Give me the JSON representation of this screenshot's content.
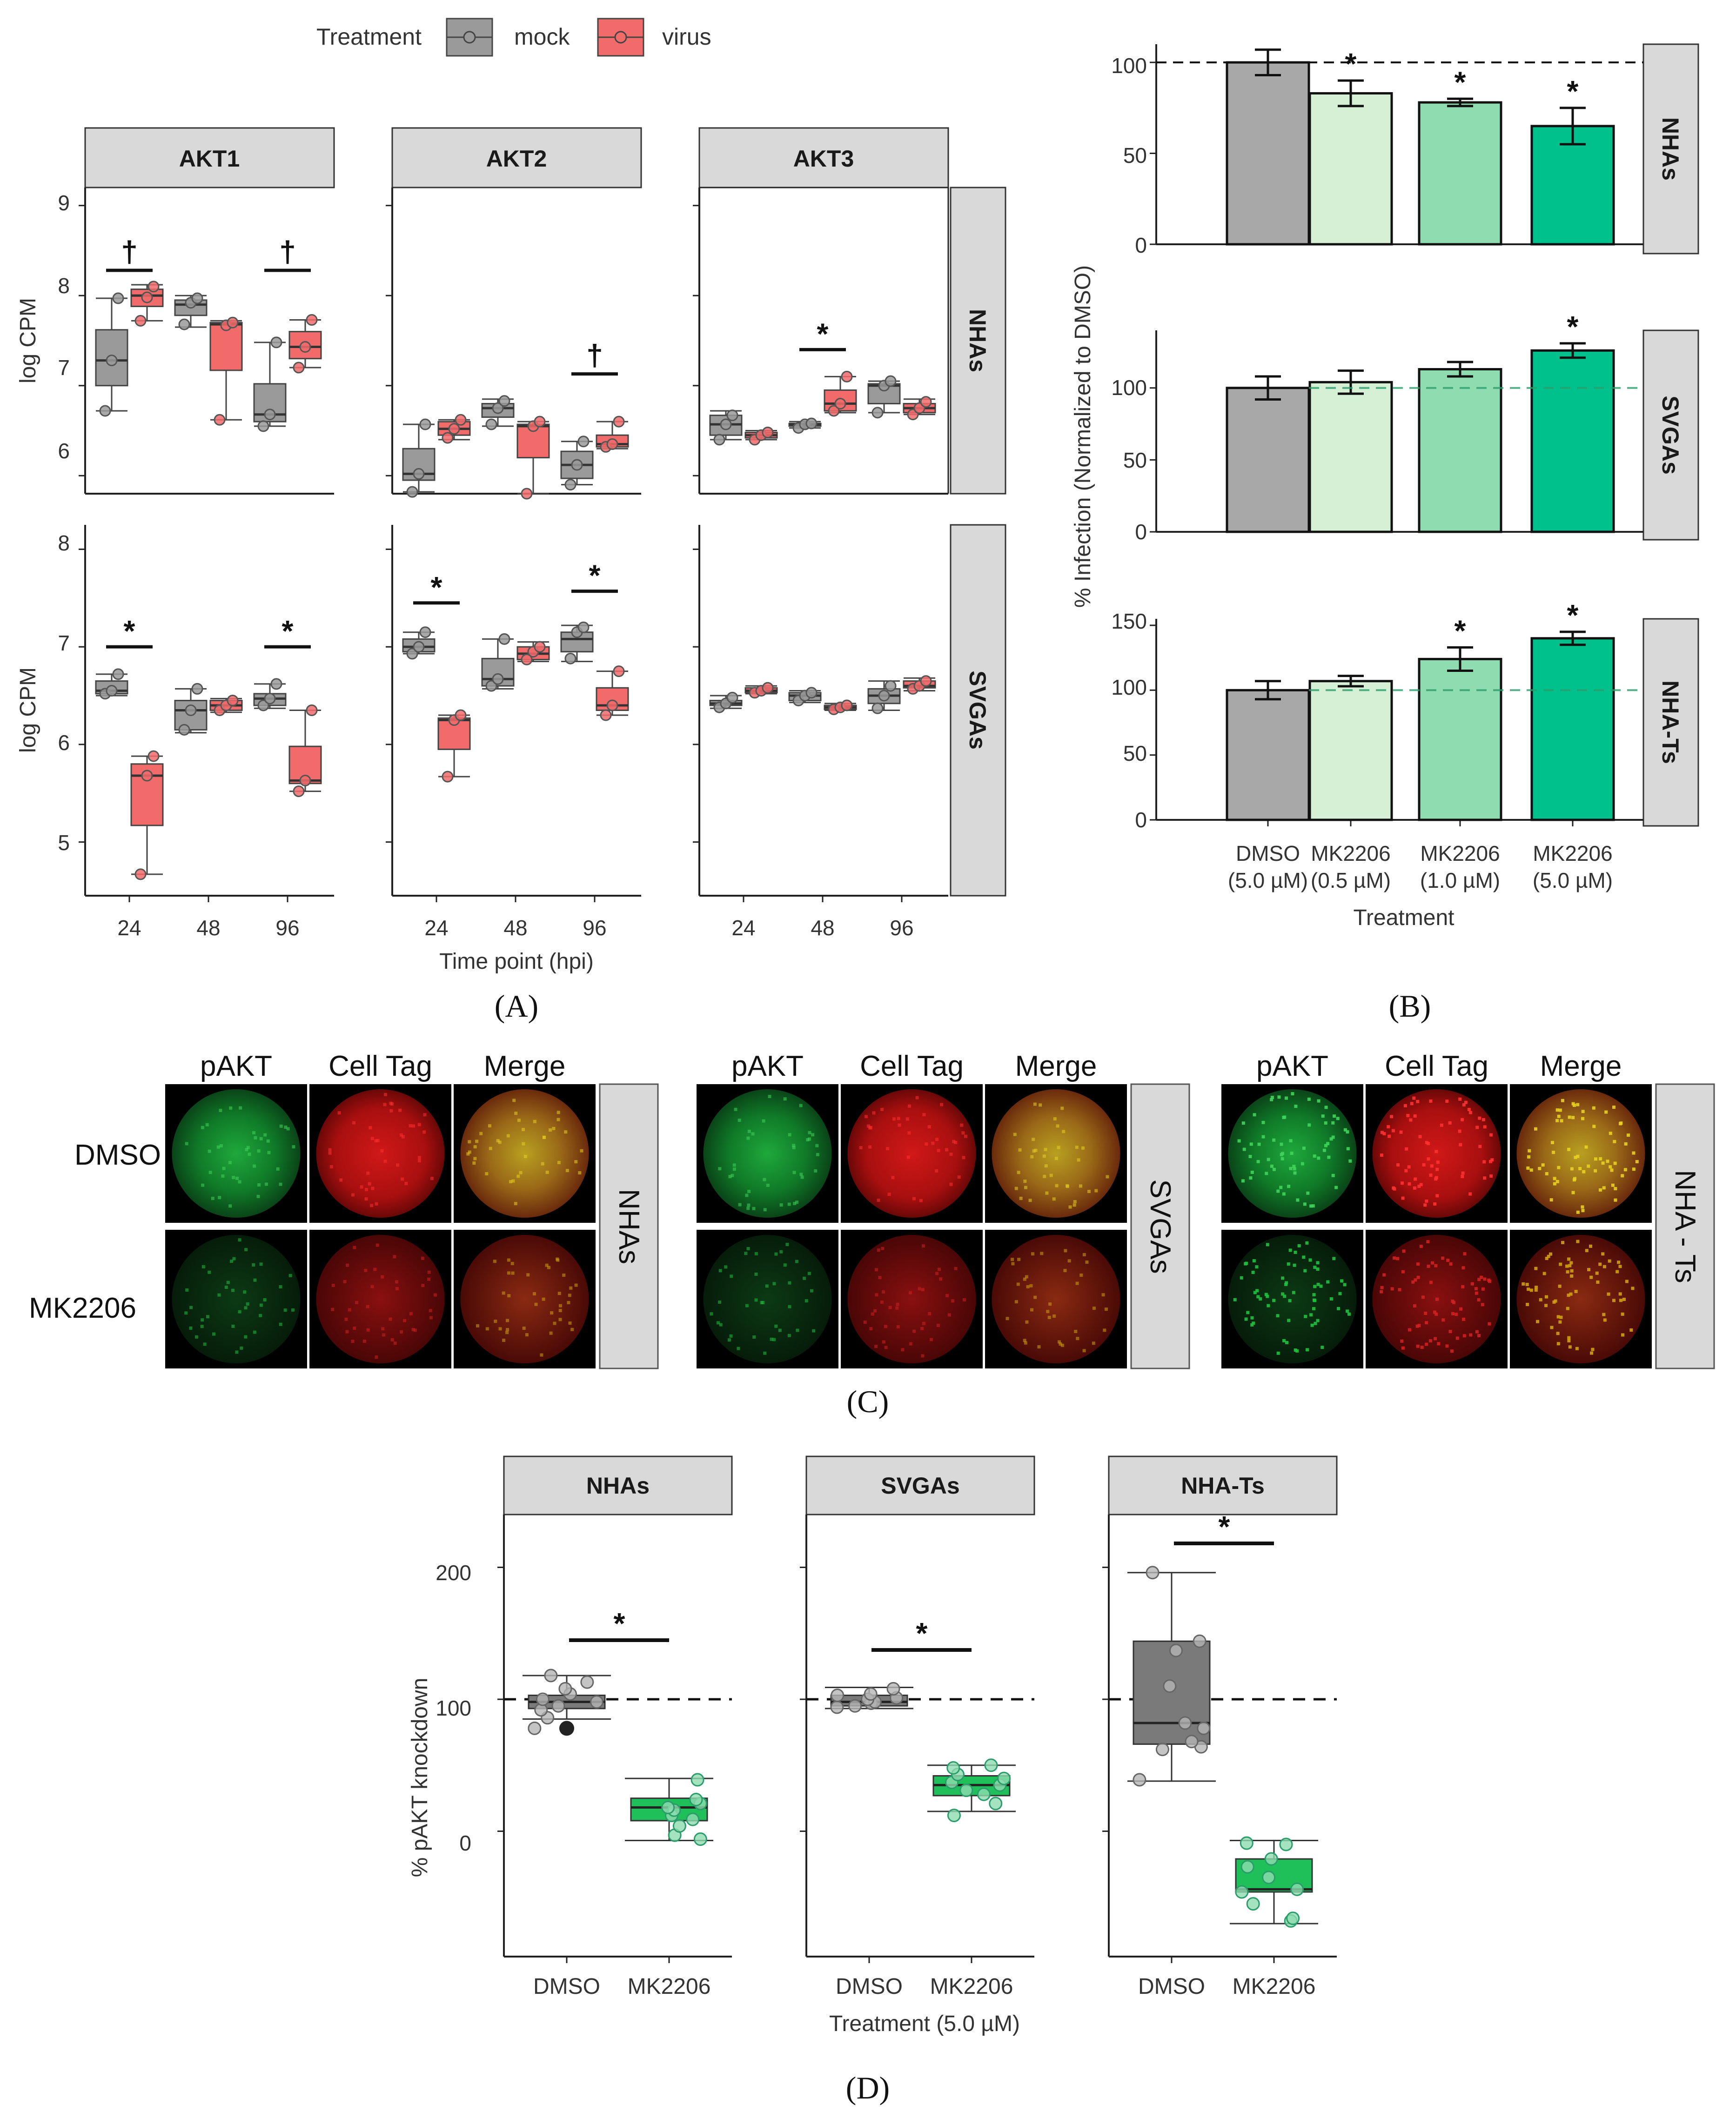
{
  "colors": {
    "mock": "#9a9a9a",
    "virus": "#f26b6b",
    "dmso": "#a8a8a8",
    "mk05": "#d6f0d6",
    "mk10": "#8fdcb0",
    "mk50": "#00c08b",
    "d_mk": "#1fbf5a",
    "strip": "#d9d9d9"
  },
  "chart_data": [
    {
      "type": "boxplot",
      "panel_label": "(A)",
      "legend": {
        "title": "Treatment",
        "entries": [
          "mock",
          "virus"
        ]
      },
      "columns": [
        "AKT1",
        "AKT2",
        "AKT3"
      ],
      "rows": [
        "NHAs",
        "SVGAs"
      ],
      "x_ticks": [
        "24",
        "48",
        "96"
      ],
      "xlabel": "Time point (hpi)",
      "ylabel": "log CPM",
      "row_yticks": {
        "NHAs": [
          "9",
          "8",
          "7",
          "6"
        ],
        "SVGAs": [
          "8",
          "7",
          "6",
          "5"
        ]
      },
      "row_ylim": {
        "NHAs": [
          5.8,
          9.2
        ],
        "SVGAs": [
          4.45,
          8.25
        ]
      },
      "groups": [
        {
          "col": 0,
          "row": 0,
          "tp": 0,
          "trt": "mock",
          "box": [
            6.72,
            7.0,
            7.28,
            7.62,
            7.97
          ],
          "pts": [
            6.72,
            7.28,
            7.97
          ]
        },
        {
          "col": 0,
          "row": 0,
          "tp": 0,
          "trt": "virus",
          "box": [
            7.72,
            7.88,
            8.0,
            8.07,
            8.12
          ],
          "pts": [
            7.72,
            7.98,
            8.1
          ]
        },
        {
          "col": 0,
          "row": 0,
          "tp": 1,
          "trt": "mock",
          "box": [
            7.65,
            7.78,
            7.9,
            7.95,
            8.0
          ],
          "pts": [
            7.68,
            7.92,
            7.97
          ]
        },
        {
          "col": 0,
          "row": 0,
          "tp": 1,
          "trt": "virus",
          "box": [
            6.62,
            7.17,
            7.68,
            7.7,
            7.72
          ],
          "pts": [
            6.62,
            7.67,
            7.7
          ]
        },
        {
          "col": 0,
          "row": 0,
          "tp": 2,
          "trt": "mock",
          "box": [
            6.55,
            6.6,
            6.68,
            7.02,
            7.48
          ],
          "pts": [
            6.55,
            6.68,
            7.48
          ]
        },
        {
          "col": 0,
          "row": 0,
          "tp": 2,
          "trt": "virus",
          "box": [
            7.2,
            7.3,
            7.43,
            7.6,
            7.73
          ],
          "pts": [
            7.2,
            7.43,
            7.73
          ]
        },
        {
          "col": 1,
          "row": 0,
          "tp": 0,
          "trt": "mock",
          "box": [
            5.82,
            5.95,
            6.02,
            6.3,
            6.57
          ],
          "pts": [
            5.82,
            6.02,
            6.57
          ]
        },
        {
          "col": 1,
          "row": 0,
          "tp": 0,
          "trt": "virus",
          "box": [
            6.4,
            6.45,
            6.52,
            6.6,
            6.62
          ],
          "pts": [
            6.42,
            6.52,
            6.62
          ]
        },
        {
          "col": 1,
          "row": 0,
          "tp": 1,
          "trt": "mock",
          "box": [
            6.55,
            6.65,
            6.75,
            6.8,
            6.85
          ],
          "pts": [
            6.57,
            6.75,
            6.83
          ]
        },
        {
          "col": 1,
          "row": 0,
          "tp": 1,
          "trt": "virus",
          "box": [
            5.8,
            6.2,
            6.55,
            6.57,
            6.6
          ],
          "pts": [
            5.8,
            6.55,
            6.6
          ]
        },
        {
          "col": 1,
          "row": 0,
          "tp": 2,
          "trt": "mock",
          "box": [
            5.9,
            5.97,
            6.12,
            6.27,
            6.38
          ],
          "pts": [
            5.9,
            6.12,
            6.38
          ]
        },
        {
          "col": 1,
          "row": 0,
          "tp": 2,
          "trt": "virus",
          "box": [
            6.3,
            6.32,
            6.35,
            6.45,
            6.6
          ],
          "pts": [
            6.32,
            6.35,
            6.6
          ]
        },
        {
          "col": 2,
          "row": 0,
          "tp": 0,
          "trt": "mock",
          "box": [
            6.4,
            6.45,
            6.57,
            6.67,
            6.72
          ],
          "pts": [
            6.4,
            6.57,
            6.67
          ]
        },
        {
          "col": 2,
          "row": 0,
          "tp": 0,
          "trt": "virus",
          "box": [
            6.4,
            6.42,
            6.45,
            6.48,
            6.5
          ],
          "pts": [
            6.4,
            6.45,
            6.48
          ]
        },
        {
          "col": 2,
          "row": 0,
          "tp": 1,
          "trt": "mock",
          "box": [
            6.53,
            6.55,
            6.57,
            6.58,
            6.6
          ],
          "pts": [
            6.53,
            6.57,
            6.58
          ]
        },
        {
          "col": 2,
          "row": 0,
          "tp": 1,
          "trt": "virus",
          "box": [
            6.7,
            6.72,
            6.8,
            6.95,
            7.1
          ],
          "pts": [
            6.72,
            6.8,
            7.1
          ]
        },
        {
          "col": 2,
          "row": 0,
          "tp": 2,
          "trt": "mock",
          "box": [
            6.7,
            6.8,
            7.0,
            7.02,
            7.05
          ],
          "pts": [
            6.7,
            7.0,
            7.05
          ]
        },
        {
          "col": 2,
          "row": 0,
          "tp": 2,
          "trt": "virus",
          "box": [
            6.68,
            6.7,
            6.75,
            6.8,
            6.85
          ],
          "pts": [
            6.68,
            6.75,
            6.82
          ]
        },
        {
          "col": 0,
          "row": 1,
          "tp": 0,
          "trt": "mock",
          "box": [
            6.5,
            6.52,
            6.55,
            6.65,
            6.72
          ],
          "pts": [
            6.52,
            6.55,
            6.72
          ]
        },
        {
          "col": 0,
          "row": 1,
          "tp": 0,
          "trt": "virus",
          "box": [
            4.67,
            5.17,
            5.68,
            5.8,
            5.88
          ],
          "pts": [
            4.67,
            5.68,
            5.88
          ]
        },
        {
          "col": 0,
          "row": 1,
          "tp": 1,
          "trt": "mock",
          "box": [
            6.12,
            6.15,
            6.35,
            6.45,
            6.57
          ],
          "pts": [
            6.15,
            6.35,
            6.57
          ]
        },
        {
          "col": 0,
          "row": 1,
          "tp": 1,
          "trt": "virus",
          "box": [
            6.33,
            6.35,
            6.4,
            6.45,
            6.47
          ],
          "pts": [
            6.35,
            6.4,
            6.45
          ]
        },
        {
          "col": 0,
          "row": 1,
          "tp": 2,
          "trt": "mock",
          "box": [
            6.37,
            6.4,
            6.47,
            6.52,
            6.62
          ],
          "pts": [
            6.4,
            6.47,
            6.62
          ]
        },
        {
          "col": 0,
          "row": 1,
          "tp": 2,
          "trt": "virus",
          "box": [
            5.52,
            5.6,
            5.63,
            5.98,
            6.35
          ],
          "pts": [
            5.52,
            5.63,
            6.35
          ]
        },
        {
          "col": 1,
          "row": 1,
          "tp": 0,
          "trt": "mock",
          "box": [
            6.93,
            6.95,
            7.0,
            7.08,
            7.15
          ],
          "pts": [
            6.93,
            7.0,
            7.15
          ]
        },
        {
          "col": 1,
          "row": 1,
          "tp": 0,
          "trt": "virus",
          "box": [
            5.67,
            5.95,
            6.25,
            6.27,
            6.3
          ],
          "pts": [
            5.67,
            6.25,
            6.3
          ]
        },
        {
          "col": 1,
          "row": 1,
          "tp": 1,
          "trt": "mock",
          "box": [
            6.57,
            6.6,
            6.67,
            6.88,
            7.08
          ],
          "pts": [
            6.6,
            6.67,
            7.08
          ]
        },
        {
          "col": 1,
          "row": 1,
          "tp": 1,
          "trt": "virus",
          "box": [
            6.85,
            6.87,
            6.93,
            7.0,
            7.05
          ],
          "pts": [
            6.87,
            6.95,
            7.0
          ]
        },
        {
          "col": 1,
          "row": 1,
          "tp": 2,
          "trt": "mock",
          "box": [
            6.85,
            6.95,
            7.08,
            7.15,
            7.22
          ],
          "pts": [
            6.88,
            7.15,
            7.2
          ]
        },
        {
          "col": 1,
          "row": 1,
          "tp": 2,
          "trt": "virus",
          "box": [
            6.3,
            6.35,
            6.4,
            6.58,
            6.75
          ],
          "pts": [
            6.3,
            6.4,
            6.75
          ]
        },
        {
          "col": 2,
          "row": 1,
          "tp": 0,
          "trt": "mock",
          "box": [
            6.37,
            6.4,
            6.42,
            6.45,
            6.5
          ],
          "pts": [
            6.38,
            6.42,
            6.48
          ]
        },
        {
          "col": 2,
          "row": 1,
          "tp": 0,
          "trt": "virus",
          "box": [
            6.52,
            6.53,
            6.55,
            6.58,
            6.6
          ],
          "pts": [
            6.53,
            6.55,
            6.58
          ]
        },
        {
          "col": 2,
          "row": 1,
          "tp": 1,
          "trt": "mock",
          "box": [
            6.43,
            6.45,
            6.5,
            6.53,
            6.55
          ],
          "pts": [
            6.45,
            6.5,
            6.53
          ]
        },
        {
          "col": 2,
          "row": 1,
          "tp": 1,
          "trt": "virus",
          "box": [
            6.35,
            6.36,
            6.38,
            6.4,
            6.42
          ],
          "pts": [
            6.36,
            6.38,
            6.4
          ]
        },
        {
          "col": 2,
          "row": 1,
          "tp": 2,
          "trt": "mock",
          "box": [
            6.35,
            6.42,
            6.5,
            6.57,
            6.65
          ],
          "pts": [
            6.37,
            6.5,
            6.6
          ]
        },
        {
          "col": 2,
          "row": 1,
          "tp": 2,
          "trt": "virus",
          "box": [
            6.55,
            6.58,
            6.6,
            6.65,
            6.68
          ],
          "pts": [
            6.57,
            6.6,
            6.65
          ]
        }
      ],
      "annotations": [
        {
          "col": 0,
          "row": 0,
          "tp": 0,
          "symbol": "†",
          "y": 8.28
        },
        {
          "col": 0,
          "row": 0,
          "tp": 2,
          "symbol": "†",
          "y": 8.28
        },
        {
          "col": 1,
          "row": 0,
          "tp": 2,
          "symbol": "†",
          "y": 7.13
        },
        {
          "col": 2,
          "row": 0,
          "tp": 1,
          "symbol": "*",
          "y": 7.4
        },
        {
          "col": 0,
          "row": 1,
          "tp": 0,
          "symbol": "*",
          "y": 7.0
        },
        {
          "col": 0,
          "row": 1,
          "tp": 2,
          "symbol": "*",
          "y": 7.0
        },
        {
          "col": 1,
          "row": 1,
          "tp": 0,
          "symbol": "*",
          "y": 7.45
        },
        {
          "col": 1,
          "row": 1,
          "tp": 2,
          "symbol": "*",
          "y": 7.57
        }
      ]
    },
    {
      "type": "bar",
      "panel_label": "(B)",
      "categories": [
        "DMSO\n(5.0 µM)",
        "MK2206\n(0.5 µM)",
        "MK2206\n(1.0 µM)",
        "MK2206\n(5.0 µM)"
      ],
      "xlabel": "Treatment",
      "ylabel": "% Infection (Normalized to DMSO)",
      "facets": [
        {
          "name": "NHAs",
          "values": [
            100,
            83,
            78,
            65
          ],
          "err": [
            7,
            7,
            2,
            10
          ],
          "sig": [
            "",
            "*",
            "*",
            "*"
          ],
          "ylim": [
            0,
            110
          ],
          "yticks": [
            0,
            50,
            100
          ],
          "ref_line": "black"
        },
        {
          "name": "SVGAs",
          "values": [
            100,
            104,
            113,
            126
          ],
          "err": [
            8,
            8,
            5,
            5
          ],
          "sig": [
            "",
            "",
            "",
            "*"
          ],
          "ylim": [
            0,
            140
          ],
          "yticks": [
            0,
            50,
            100
          ],
          "ref_line": "green"
        },
        {
          "name": "NHA-Ts",
          "values": [
            100,
            107,
            124,
            140
          ],
          "err": [
            7,
            4,
            9,
            5
          ],
          "sig": [
            "",
            "",
            "*",
            "*"
          ],
          "ylim": [
            0,
            155
          ],
          "yticks": [
            0,
            50,
            100,
            150
          ],
          "ref_line": "green"
        }
      ]
    },
    {
      "type": "boxplot",
      "panel_label": "(D)",
      "categories": [
        "DMSO",
        "MK2206"
      ],
      "xlabel": "Treatment (5.0 µM)",
      "ylabel": "% pAKT knockdown",
      "ylim": [
        -95,
        240
      ],
      "yticks": [
        0,
        100,
        200
      ],
      "facets": [
        {
          "name": "NHAs",
          "groups": [
            {
              "box": [
                85,
                93,
                98,
                103,
                118
              ],
              "pts": [
                78,
                86,
                92,
                95,
                98,
                100,
                104,
                108,
                113,
                118
              ]
            },
            {
              "box": [
                -7,
                8,
                18,
                25,
                40
              ],
              "pts": [
                -6,
                -3,
                4,
                9,
                12,
                16,
                18,
                21,
                24,
                39
              ]
            }
          ]
        },
        {
          "name": "SVGAs",
          "groups": [
            {
              "box": [
                93,
                95,
                98,
                103,
                109
              ],
              "pts": [
                94,
                95,
                97,
                98,
                100,
                101,
                103,
                104,
                108
              ]
            },
            {
              "box": [
                15,
                27,
                35,
                42,
                50
              ],
              "pts": [
                12,
                21,
                28,
                31,
                35,
                37,
                40,
                43,
                48,
                50
              ]
            }
          ]
        },
        {
          "name": "NHA-Ts",
          "groups": [
            {
              "box": [
                38,
                66,
                82,
                144,
                196
              ],
              "pts": [
                39,
                62,
                64,
                68,
                78,
                82,
                110,
                137,
                144,
                196
              ]
            },
            {
              "box": [
                -70,
                -46,
                -44,
                -21,
                -7
              ],
              "pts": [
                -68,
                -66,
                -55,
                -46,
                -44,
                -35,
                -27,
                -21,
                -10,
                -9
              ]
            }
          ]
        }
      ],
      "ref_line": 100,
      "sig": "*"
    }
  ],
  "panel_c": {
    "label": "(C)",
    "columns": [
      "pAKT",
      "Cell Tag",
      "Merge"
    ],
    "rows": [
      "DMSO",
      "MK2206"
    ],
    "groups": [
      "NHAs",
      "SVGAs",
      "NHA - Ts"
    ]
  }
}
